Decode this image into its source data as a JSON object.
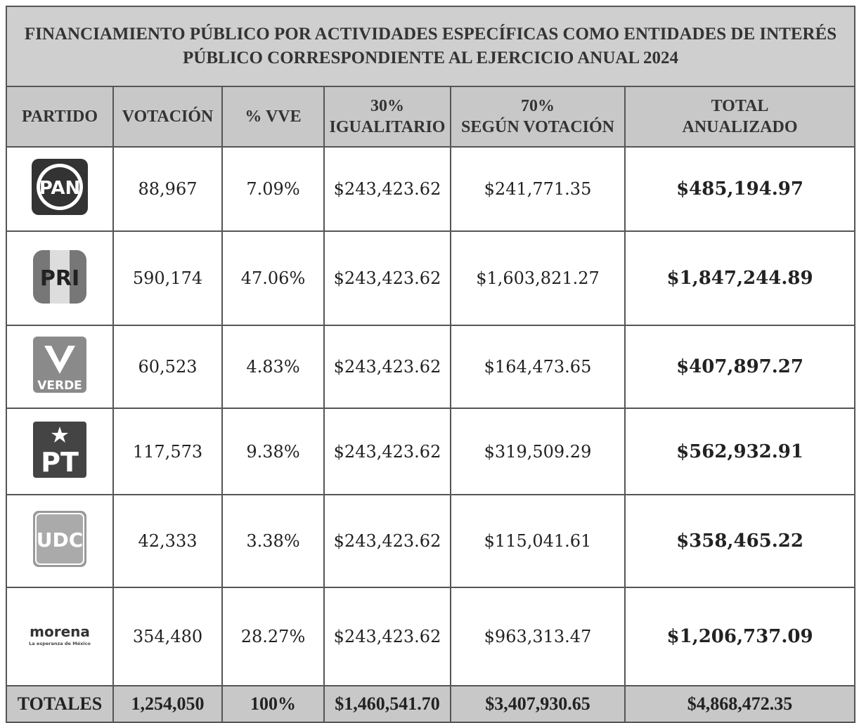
{
  "title_lines": [
    "FINANCIAMIENTO PÚBLICO POR ACTIVIDADES ESPECÍFICAS COMO ENTIDADES DE INTERÉS",
    "PÚBLICO CORRESPONDIENTE AL EJERCICIO ANUAL 2024"
  ],
  "header": [
    [
      "PARTIDO"
    ],
    [
      "VOTACIÓN"
    ],
    [
      "% VVE"
    ],
    [
      "30%",
      "IGUALITARIO"
    ],
    [
      "70%",
      "SEGÚN VOTACIÓN"
    ],
    [
      "TOTAL",
      "ANUALIZADO"
    ]
  ],
  "rows": [
    {
      "logo": [
        "PAN"
      ],
      "cells": [
        "88,967",
        "7.09%",
        "$243,423.62",
        "$241,771.35",
        "$485,194.97"
      ]
    },
    {
      "logo": [
        "PRI"
      ],
      "cells": [
        "590,174",
        "47.06%",
        "$243,423.62",
        "$1,603,821.27",
        "$1,847,244.89"
      ]
    },
    {
      "logo": [
        "VERDE"
      ],
      "cells": [
        "60,523",
        "4.83%",
        "$243,423.62",
        "$164,473.65",
        "$407,897.27"
      ]
    },
    {
      "logo": [
        "PT"
      ],
      "cells": [
        "117,573",
        "9.38%",
        "$243,423.62",
        "$319,509.29",
        "$562,932.91"
      ]
    },
    {
      "logo": [
        "UDC"
      ],
      "cells": [
        "42,333",
        "3.38%",
        "$243,423.62",
        "$115,041.61",
        "$358,465.22"
      ]
    },
    {
      "logo": [
        "morena",
        "La esperanza de México"
      ],
      "cells": [
        "354,480",
        "28.27%",
        "$243,423.62",
        "$963,313.47",
        "$1,206,737.09"
      ]
    }
  ],
  "totals": [
    "TOTALES",
    "1,254,050",
    "100%",
    "$1,460,541.70",
    "$3,407,930.65",
    "$4,868,472.35"
  ]
}
